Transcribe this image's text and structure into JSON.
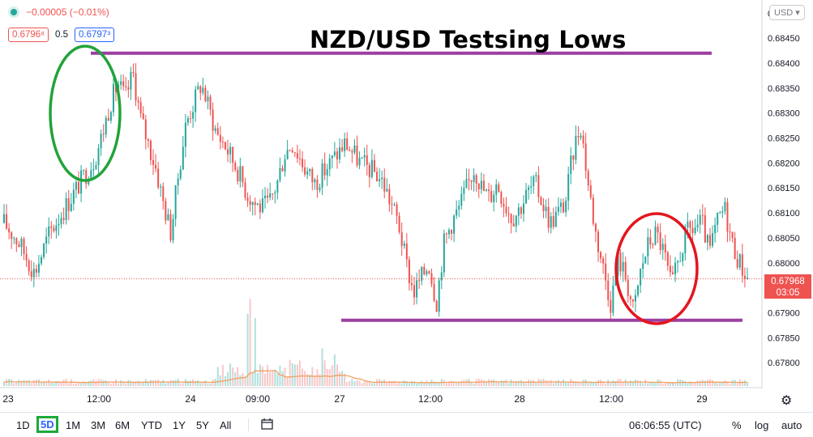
{
  "header": {
    "change_text": "−0.00005 (−0.01%)",
    "bid": "0.6796⁸",
    "spread": "0.5",
    "ask": "0.6797³",
    "bid_color": "#ef5350",
    "ask_color": "#2962ff"
  },
  "title": "NZD/USD Testsing Lows",
  "currency_button": "USD ▾",
  "price_tag": {
    "price": "0.67968",
    "countdown": "03:05",
    "color": "#ef5350"
  },
  "toolbar": {
    "ranges": [
      "1D",
      "5D",
      "1M",
      "3M",
      "6M",
      "YTD",
      "1Y",
      "5Y",
      "All"
    ],
    "active_range": "5D",
    "time": "06:06:55 (UTC)",
    "percent": "%",
    "log": "log",
    "auto": "auto"
  },
  "chart_data": {
    "type": "candlestick",
    "symbol": "NZD/USD",
    "ylim": [
      0.6775,
      0.6852
    ],
    "y_ticks": [
      0.685,
      0.6845,
      0.684,
      0.6835,
      0.683,
      0.6825,
      0.682,
      0.6815,
      0.681,
      0.6805,
      0.68,
      0.6795,
      0.679,
      0.6785,
      0.678
    ],
    "y_tick_labels": [
      "0.68500",
      "0.68450",
      "0.68400",
      "0.68350",
      "0.68300",
      "0.68250",
      "0.68200",
      "0.68150",
      "0.68100",
      "0.68050",
      "0.68000",
      "0.67950",
      "0.67900",
      "0.67850",
      "0.67800"
    ],
    "x_ticks": [
      "23",
      "12:00",
      "24",
      "09:00",
      "27",
      "12:00",
      "28",
      "12:00",
      "29"
    ],
    "current_price": 0.67968,
    "colors": {
      "up": "#26a69a",
      "down": "#ef5350",
      "volume_ma": "#f0a161",
      "annotation_line": "#9c3fa0",
      "circle_high": "#22a33a",
      "circle_low": "#e3161e"
    },
    "price_path": [
      [
        0,
        0.6808
      ],
      [
        2,
        0.6804
      ],
      [
        4,
        0.6798
      ],
      [
        6,
        0.6806
      ],
      [
        8,
        0.6811
      ],
      [
        10,
        0.6816
      ],
      [
        12,
        0.6821
      ],
      [
        13,
        0.6826
      ],
      [
        14,
        0.6832
      ],
      [
        15,
        0.6836
      ],
      [
        16,
        0.6833
      ],
      [
        17,
        0.6838
      ],
      [
        18,
        0.6829
      ],
      [
        19,
        0.6824
      ],
      [
        20,
        0.6819
      ],
      [
        21,
        0.6812
      ],
      [
        22,
        0.6806
      ],
      [
        23,
        0.6818
      ],
      [
        24,
        0.6828
      ],
      [
        25,
        0.6832
      ],
      [
        26,
        0.6836
      ],
      [
        27,
        0.6831
      ],
      [
        28,
        0.6826
      ],
      [
        29,
        0.6824
      ],
      [
        30,
        0.6821
      ],
      [
        31,
        0.6818
      ],
      [
        32,
        0.6814
      ],
      [
        33,
        0.6812
      ],
      [
        34,
        0.6811
      ],
      [
        35,
        0.6812
      ],
      [
        36,
        0.6816
      ],
      [
        37,
        0.6822
      ],
      [
        38,
        0.6824
      ],
      [
        39,
        0.6821
      ],
      [
        40,
        0.6818
      ],
      [
        41,
        0.6816
      ],
      [
        42,
        0.6818
      ],
      [
        43,
        0.682
      ],
      [
        44,
        0.6822
      ],
      [
        45,
        0.6824
      ],
      [
        46,
        0.6822
      ],
      [
        47,
        0.682
      ],
      [
        48,
        0.6819
      ],
      [
        49,
        0.6818
      ],
      [
        50,
        0.6816
      ],
      [
        51,
        0.6812
      ],
      [
        52,
        0.6808
      ],
      [
        53,
        0.68
      ],
      [
        54,
        0.6794
      ],
      [
        55,
        0.6797
      ],
      [
        56,
        0.68
      ],
      [
        57,
        0.6792
      ],
      [
        58,
        0.6804
      ],
      [
        59,
        0.6808
      ],
      [
        60,
        0.6811
      ],
      [
        61,
        0.6815
      ],
      [
        62,
        0.6819
      ],
      [
        63,
        0.6815
      ],
      [
        64,
        0.6813
      ],
      [
        65,
        0.6816
      ],
      [
        66,
        0.6812
      ],
      [
        67,
        0.6809
      ],
      [
        68,
        0.6811
      ],
      [
        69,
        0.6814
      ],
      [
        70,
        0.6816
      ],
      [
        71,
        0.6812
      ],
      [
        72,
        0.6808
      ],
      [
        73,
        0.681
      ],
      [
        74,
        0.6812
      ],
      [
        75,
        0.6822
      ],
      [
        76,
        0.6828
      ],
      [
        77,
        0.6816
      ],
      [
        78,
        0.6806
      ],
      [
        79,
        0.6799
      ],
      [
        80,
        0.6792
      ],
      [
        81,
        0.6801
      ],
      [
        82,
        0.6797
      ],
      [
        83,
        0.679
      ],
      [
        84,
        0.6799
      ],
      [
        85,
        0.6804
      ],
      [
        86,
        0.6806
      ],
      [
        87,
        0.6802
      ],
      [
        88,
        0.6795
      ],
      [
        89,
        0.6801
      ],
      [
        90,
        0.6806
      ],
      [
        91,
        0.6807
      ],
      [
        92,
        0.6808
      ],
      [
        93,
        0.6802
      ],
      [
        94,
        0.6808
      ],
      [
        95,
        0.6811
      ],
      [
        96,
        0.6804
      ],
      [
        97,
        0.68
      ],
      [
        98,
        0.6797
      ]
    ],
    "annotations": [
      {
        "type": "line",
        "label": "resistance",
        "from": [
          14,
          0.6842
        ],
        "to": [
          98,
          0.6842
        ]
      },
      {
        "type": "line",
        "label": "support",
        "from": [
          48,
          0.67885
        ],
        "to": [
          98,
          0.67885
        ]
      },
      {
        "type": "circle",
        "label": "highs",
        "center": [
          13,
          0.6831
        ]
      },
      {
        "type": "circle",
        "label": "lows",
        "center": [
          86,
          0.6797
        ]
      }
    ]
  }
}
